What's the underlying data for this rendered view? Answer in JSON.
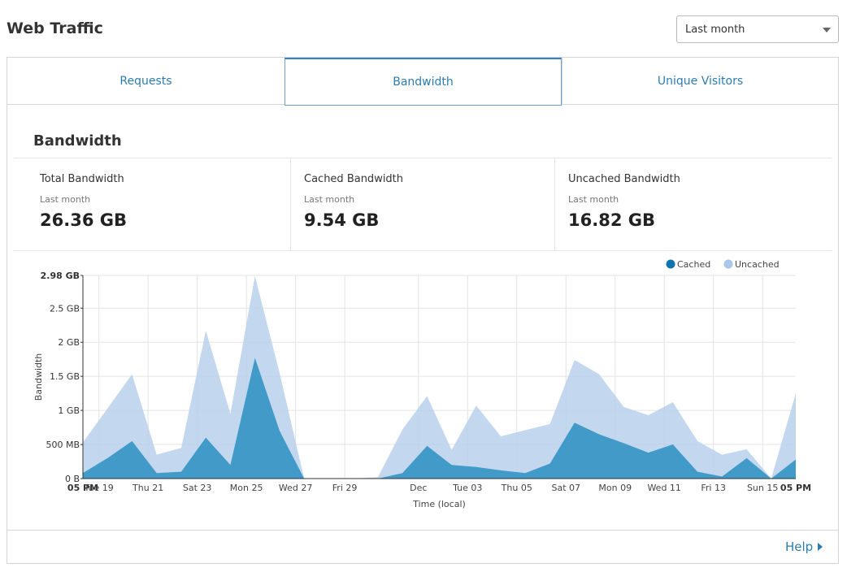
{
  "header": {
    "title": "Web Traffic"
  },
  "range_select": {
    "value": "Last month"
  },
  "tabs": [
    {
      "label": "Requests",
      "active": false
    },
    {
      "label": "Bandwidth",
      "active": true
    },
    {
      "label": "Unique Visitors",
      "active": false
    }
  ],
  "section": {
    "title": "Bandwidth"
  },
  "stats": [
    {
      "label": "Total Bandwidth",
      "sub": "Last month",
      "value": "26.36 GB"
    },
    {
      "label": "Cached Bandwidth",
      "sub": "Last month",
      "value": "9.54 GB"
    },
    {
      "label": "Uncached Bandwidth",
      "sub": "Last month",
      "value": "16.82 GB"
    }
  ],
  "footer": {
    "help_label": "Help"
  },
  "chart_data": {
    "type": "area",
    "stacked": true,
    "xlabel": "Time (local)",
    "ylabel": "Bandwidth",
    "ylim_gb": [
      0,
      2.98
    ],
    "y_ticks": [
      {
        "value": 0,
        "label": "0 B"
      },
      {
        "value": 0.5,
        "label": "500 MB"
      },
      {
        "value": 1,
        "label": "1 GB"
      },
      {
        "value": 1.5,
        "label": "1.5 GB"
      },
      {
        "value": 2,
        "label": "2 GB"
      },
      {
        "value": 2.5,
        "label": "2.5 GB"
      },
      {
        "value": 2.98,
        "label": "2.98 GB",
        "bold": true
      }
    ],
    "x_ticks": [
      {
        "day": 0,
        "label": "05 PM",
        "bold": true
      },
      {
        "day": 0.65,
        "label": "Tue 19"
      },
      {
        "day": 2.65,
        "label": "Thu 21"
      },
      {
        "day": 4.65,
        "label": "Sat 23"
      },
      {
        "day": 6.65,
        "label": "Mon 25"
      },
      {
        "day": 8.65,
        "label": "Wed 27"
      },
      {
        "day": 10.65,
        "label": "Fri 29"
      },
      {
        "day": 13.65,
        "label": "Dec"
      },
      {
        "day": 15.65,
        "label": "Tue 03"
      },
      {
        "day": 17.65,
        "label": "Thu 05"
      },
      {
        "day": 19.65,
        "label": "Sat 07"
      },
      {
        "day": 21.65,
        "label": "Mon 09"
      },
      {
        "day": 23.65,
        "label": "Wed 11"
      },
      {
        "day": 25.65,
        "label": "Fri 13"
      },
      {
        "day": 27.65,
        "label": "Sun 15"
      },
      {
        "day": 29,
        "label": "05 PM",
        "bold": true
      }
    ],
    "x_range_days": [
      0,
      29
    ],
    "legend": {
      "placement": "top-right"
    },
    "series": [
      {
        "name": "Cached",
        "color": "#2a8fc1",
        "points_gb": [
          [
            0,
            0.08
          ],
          [
            1,
            0.3
          ],
          [
            2,
            0.55
          ],
          [
            3,
            0.08
          ],
          [
            4,
            0.1
          ],
          [
            5,
            0.6
          ],
          [
            6,
            0.2
          ],
          [
            7,
            1.77
          ],
          [
            8,
            0.7
          ],
          [
            9,
            0
          ],
          [
            10,
            0
          ],
          [
            11,
            0
          ],
          [
            12,
            0
          ],
          [
            13,
            0.08
          ],
          [
            14,
            0.48
          ],
          [
            15,
            0.2
          ],
          [
            16,
            0.17
          ],
          [
            17,
            0.12
          ],
          [
            18,
            0.08
          ],
          [
            19,
            0.22
          ],
          [
            20,
            0.82
          ],
          [
            21,
            0.65
          ],
          [
            22,
            0.52
          ],
          [
            23,
            0.38
          ],
          [
            24,
            0.5
          ],
          [
            25,
            0.1
          ],
          [
            26,
            0.03
          ],
          [
            27,
            0.3
          ],
          [
            28,
            0
          ],
          [
            29,
            0.28
          ]
        ]
      },
      {
        "name": "Uncached",
        "color": "#b9d0ec",
        "points_gb": [
          [
            0,
            0.45
          ],
          [
            1,
            0.73
          ],
          [
            2,
            0.98
          ],
          [
            3,
            0.27
          ],
          [
            4,
            0.35
          ],
          [
            5,
            1.57
          ],
          [
            6,
            0.75
          ],
          [
            7,
            1.2
          ],
          [
            8,
            0.85
          ],
          [
            9,
            0
          ],
          [
            10,
            0
          ],
          [
            11,
            0
          ],
          [
            12,
            0.02
          ],
          [
            13,
            0.64
          ],
          [
            14,
            0.73
          ],
          [
            15,
            0.22
          ],
          [
            16,
            0.9
          ],
          [
            17,
            0.5
          ],
          [
            18,
            0.63
          ],
          [
            19,
            0.58
          ],
          [
            20,
            0.92
          ],
          [
            21,
            0.88
          ],
          [
            22,
            0.53
          ],
          [
            23,
            0.55
          ],
          [
            24,
            0.62
          ],
          [
            25,
            0.45
          ],
          [
            26,
            0.32
          ],
          [
            27,
            0.13
          ],
          [
            28,
            0
          ],
          [
            29,
            0.97
          ]
        ]
      }
    ]
  }
}
